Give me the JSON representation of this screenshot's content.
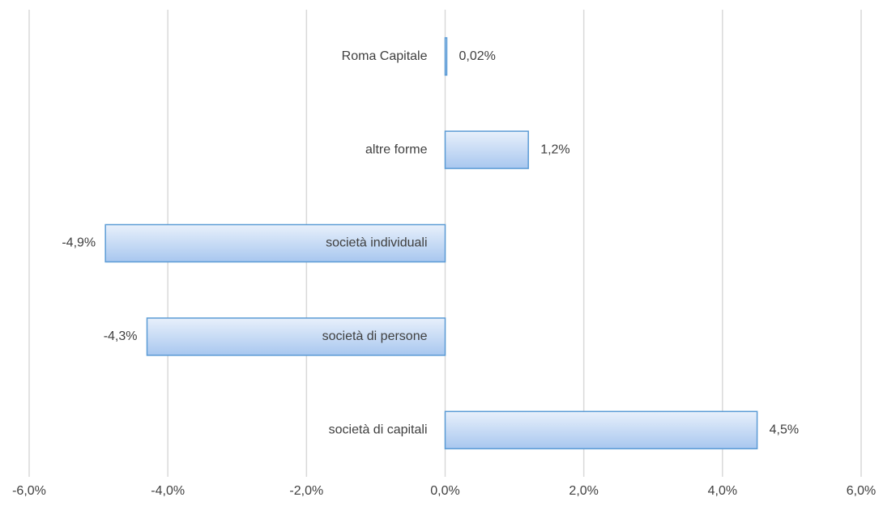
{
  "chart_data": {
    "type": "hbar",
    "categories": [
      "Roma Capitale",
      "altre forme",
      "società individuali",
      "società di persone",
      "società di capitali"
    ],
    "values": [
      0.02,
      1.2,
      -4.9,
      -4.3,
      4.5
    ],
    "value_labels": [
      "0,02%",
      "1,2%",
      "-4,9%",
      "-4,3%",
      "4,5%"
    ],
    "color": "#5b9bd5",
    "xlim": [
      -6,
      6
    ],
    "xticks": [
      {
        "value": -6,
        "label": "-6,0%"
      },
      {
        "value": -4,
        "label": "-4,0%"
      },
      {
        "value": -2,
        "label": "-2,0%"
      },
      {
        "value": 0,
        "label": "0,0%"
      },
      {
        "value": 2,
        "label": "2,0%"
      },
      {
        "value": 4,
        "label": "4,0%"
      },
      {
        "value": 6,
        "label": "6,0%"
      }
    ],
    "grid": true
  }
}
